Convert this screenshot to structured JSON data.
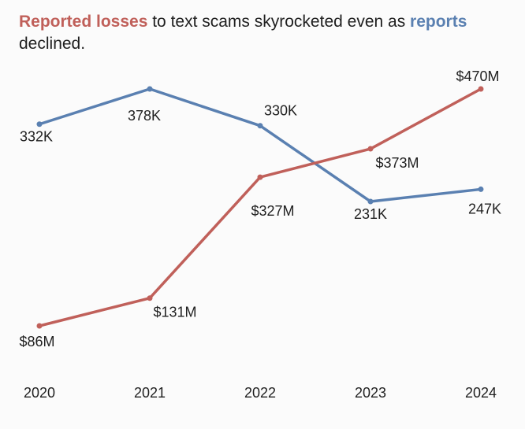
{
  "title": {
    "part1": "Reported losses",
    "part2": " to text scams skyrocketed even as ",
    "part3": "reports",
    "part4": " declined."
  },
  "colors": {
    "losses": "#c0605a",
    "reports": "#5a80b1",
    "text": "#1f1f1f",
    "background": "#fbfbfb"
  },
  "chart_data": {
    "type": "line",
    "x": [
      "2020",
      "2021",
      "2022",
      "2023",
      "2024"
    ],
    "series": [
      {
        "name": "reports",
        "values": [
          332,
          378,
          330,
          231,
          247
        ],
        "labels": [
          "332K",
          "378K",
          "330K",
          "231K",
          "247K"
        ],
        "color": "#5a80b1"
      },
      {
        "name": "Reported losses",
        "values": [
          86,
          131,
          327,
          373,
          470
        ],
        "labels": [
          "$86M",
          "$131M",
          "$327M",
          "$373M",
          "$470M"
        ],
        "color": "#c0605a"
      }
    ],
    "grid": false,
    "legend": "none"
  }
}
